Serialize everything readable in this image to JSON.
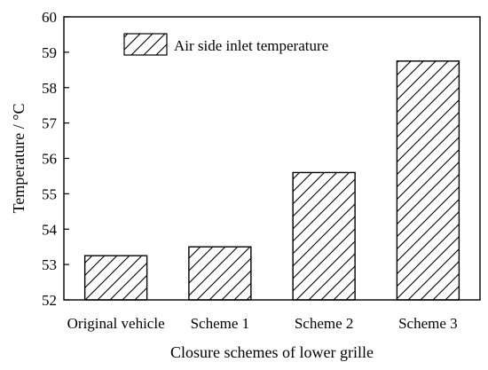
{
  "chart_data": {
    "type": "bar",
    "title": "",
    "xlabel": "Closure schemes of lower grille",
    "ylabel": "Temperature / °C",
    "categories": [
      "Original vehicle",
      "Scheme 1",
      "Scheme 2",
      "Scheme 3"
    ],
    "series": [
      {
        "name": "Air side inlet temperature",
        "values": [
          53.25,
          53.5,
          55.6,
          58.75
        ],
        "pattern": "diagonal-hatch"
      }
    ],
    "ylim": [
      52,
      60
    ],
    "yticks": [
      52,
      53,
      54,
      55,
      56,
      57,
      58,
      59,
      60
    ],
    "grid": false,
    "legend_position": "top-left"
  }
}
